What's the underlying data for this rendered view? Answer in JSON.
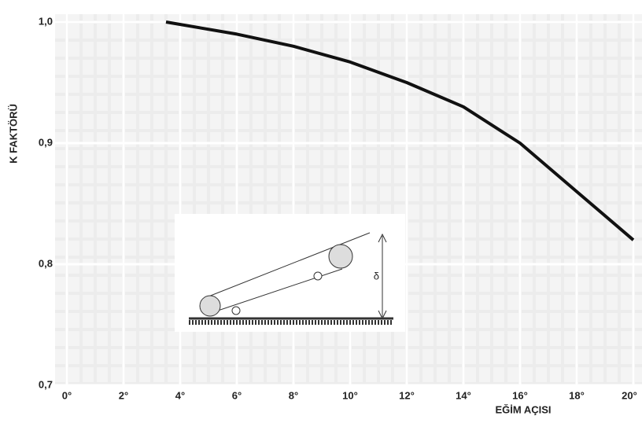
{
  "chart_data": {
    "type": "line",
    "xlabel": "EĞİM AÇISI",
    "ylabel": "K FAKTÖRÜ",
    "annotation": "δ",
    "x": [
      3.5,
      6,
      8,
      10,
      12,
      14,
      16,
      18,
      20
    ],
    "series": [
      {
        "color": "#111111",
        "values": [
          1.0,
          0.99,
          0.98,
          0.967,
          0.95,
          0.93,
          0.9,
          0.86,
          0.82
        ]
      }
    ],
    "xlim": [
      0,
      20
    ],
    "xticks": [
      {
        "value": 0,
        "label": "0°"
      },
      {
        "value": 2,
        "label": "2°"
      },
      {
        "value": 4,
        "label": "4°"
      },
      {
        "value": 6,
        "label": "6°"
      },
      {
        "value": 8,
        "label": "8°"
      },
      {
        "value": 10,
        "label": "10°"
      },
      {
        "value": 12,
        "label": "12°"
      },
      {
        "value": 14,
        "label": "14°"
      },
      {
        "value": 16,
        "label": "16°"
      },
      {
        "value": 18,
        "label": "18°"
      },
      {
        "value": 20,
        "label": "20°"
      }
    ],
    "ylim": [
      0.7,
      1.0
    ],
    "yticks": [
      {
        "value": 0.7,
        "label": "0,7"
      },
      {
        "value": 0.8,
        "label": "0,8"
      },
      {
        "value": 0.9,
        "label": "0,9"
      },
      {
        "value": 1.0,
        "label": "1,0"
      }
    ],
    "grid": true
  }
}
